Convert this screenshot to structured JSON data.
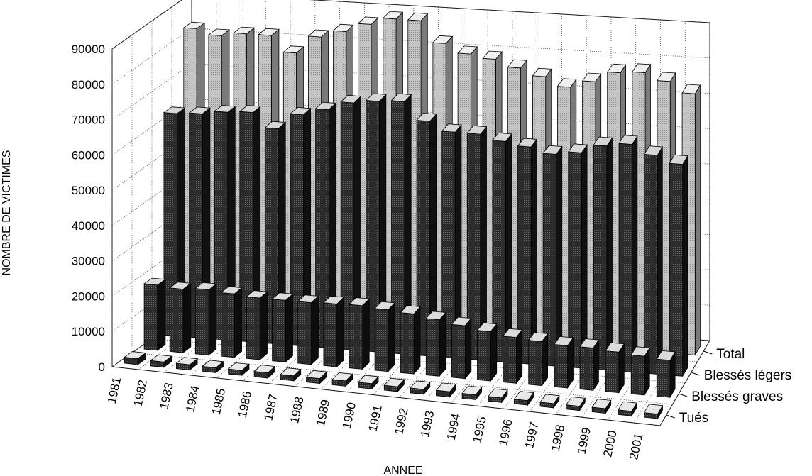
{
  "chart_data": {
    "type": "bar",
    "style": "3d-depth",
    "xlabel": "ANNEE",
    "ylabel": "NOMBRE DE VICTIMES",
    "ylim": [
      0,
      90000
    ],
    "yticks": [
      0,
      10000,
      20000,
      30000,
      40000,
      50000,
      60000,
      70000,
      80000,
      90000
    ],
    "grid": true,
    "categories": [
      "1981",
      "1982",
      "1983",
      "1984",
      "1985",
      "1986",
      "1987",
      "1988",
      "1989",
      "1990",
      "1991",
      "1992",
      "1993",
      "1994",
      "1995",
      "1996",
      "1997",
      "1998",
      "1999",
      "2000",
      "2001"
    ],
    "series": [
      {
        "name": "Tués",
        "color": "#1a1a1a",
        "values": [
          1700,
          1500,
          1500,
          1400,
          1400,
          1500,
          1400,
          1400,
          1500,
          1500,
          1400,
          1400,
          1500,
          1400,
          1300,
          1300,
          1200,
          1200,
          1300,
          1300,
          1300
        ]
      },
      {
        "name": "Blessés graves",
        "color": "#202020",
        "values": [
          18500,
          18000,
          18500,
          18000,
          17500,
          17500,
          17500,
          17800,
          18000,
          17500,
          17000,
          16000,
          15000,
          14000,
          13000,
          12500,
          12000,
          12000,
          11500,
          11000,
          10500
        ]
      },
      {
        "name": "Blessés légers",
        "color": "#3a3a3a",
        "values": [
          63000,
          63500,
          64500,
          65000,
          61000,
          65500,
          67500,
          70000,
          71000,
          71500,
          66500,
          64000,
          64000,
          62500,
          61500,
          60000,
          61000,
          63500,
          64500,
          62000,
          60000
        ]
      },
      {
        "name": "Total",
        "color": "#bdbdbd",
        "values": [
          83000,
          81500,
          82500,
          82500,
          78000,
          83000,
          85000,
          87500,
          89500,
          89500,
          83500,
          81000,
          80000,
          78000,
          76000,
          73500,
          75500,
          78500,
          79000,
          77000,
          74000
        ]
      }
    ]
  }
}
